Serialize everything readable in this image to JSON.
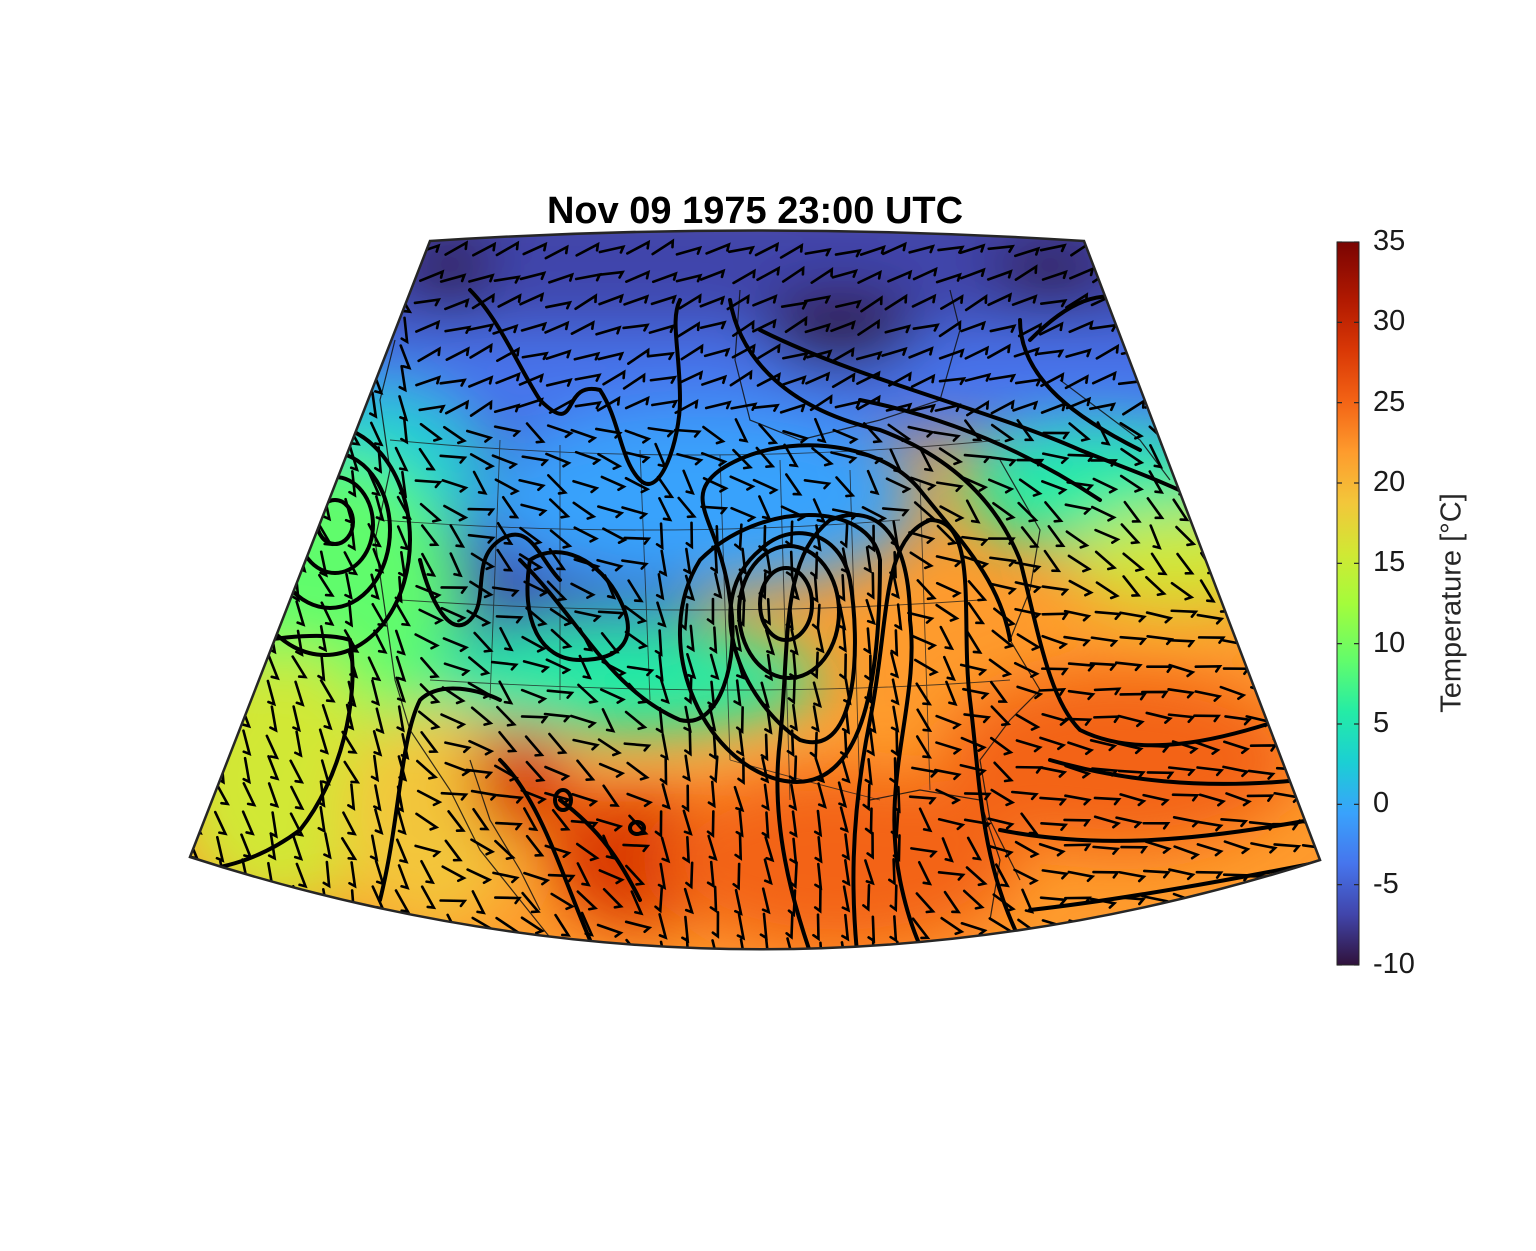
{
  "title": "Nov 09 1975 23:00 UTC",
  "colorbar": {
    "label": "Temperature [°C]",
    "min": -10,
    "max": 35,
    "ticks": [
      {
        "value": 35,
        "label": "35"
      },
      {
        "value": 30,
        "label": "30"
      },
      {
        "value": 25,
        "label": "25"
      },
      {
        "value": 20,
        "label": "20"
      },
      {
        "value": 15,
        "label": "15"
      },
      {
        "value": 10,
        "label": "10"
      },
      {
        "value": 5,
        "label": "5"
      },
      {
        "value": 0,
        "label": "0"
      },
      {
        "value": -5,
        "label": "-5"
      },
      {
        "value": -10,
        "label": "-10"
      }
    ],
    "colormap": [
      "#30123b",
      "#4145ab",
      "#4675ed",
      "#39a2fc",
      "#1bcfd4",
      "#24eca6",
      "#61fc6c",
      "#a4fc3b",
      "#d1e834",
      "#f3c63a",
      "#fe9b2d",
      "#f36315",
      "#d93806",
      "#b11901",
      "#7a0402"
    ]
  },
  "map": {
    "projection": "lambert-conic",
    "overlays": [
      "temperature-shading",
      "pressure-contours",
      "wind-barbs",
      "coastlines",
      "state-borders"
    ]
  }
}
